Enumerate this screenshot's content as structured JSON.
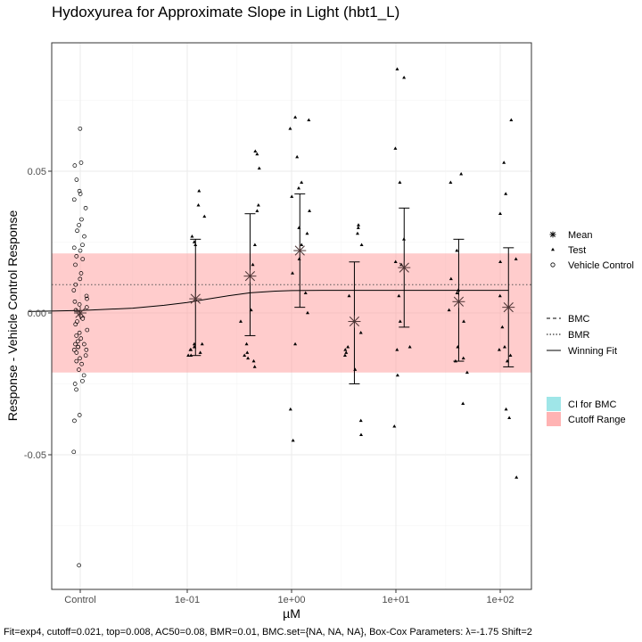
{
  "chart_data": {
    "type": "scatter",
    "title": "Hydoxyurea for Approximate Slope in Light (hbt1_L)",
    "xlabel": "µM",
    "ylabel": "Response - Vehicle Control Response",
    "x_scale": "log10",
    "x_ticks": [
      "Control",
      "1e-01",
      "1e+00",
      "1e+01",
      "1e+02"
    ],
    "y_ticks": [
      "-0.05",
      "0.00",
      "0.05"
    ],
    "ylim": [
      -0.097,
      0.095
    ],
    "grid": true,
    "legend_position": "right",
    "cutoff_range": [
      -0.021,
      0.021
    ],
    "bmr": 0.01,
    "concentrations": [
      0.12,
      0.4,
      1.2,
      4,
      12,
      40,
      120
    ],
    "means": [
      0.005,
      0.013,
      0.022,
      -0.003,
      0.016,
      0.004,
      0.002
    ],
    "error_bars": [
      {
        "low": -0.015,
        "high": 0.026
      },
      {
        "low": -0.008,
        "high": 0.035
      },
      {
        "low": 0.002,
        "high": 0.042
      },
      {
        "low": -0.025,
        "high": 0.018
      },
      {
        "low": -0.005,
        "high": 0.037
      },
      {
        "low": -0.017,
        "high": 0.026
      },
      {
        "low": -0.019,
        "high": 0.023
      }
    ],
    "winning_fit": {
      "model": "exp4",
      "top": 0.008,
      "ac50": 0.08,
      "baseline": 0.0005,
      "x": [
        0.003,
        0.01,
        0.03,
        0.06,
        0.1,
        0.15,
        0.25,
        0.4,
        0.7,
        1,
        2,
        5,
        10,
        30,
        120
      ],
      "y": [
        0.0005,
        0.0009,
        0.0017,
        0.0027,
        0.0037,
        0.0048,
        0.0061,
        0.0071,
        0.0077,
        0.0079,
        0.008,
        0.008,
        0.008,
        0.008,
        0.008
      ]
    },
    "test_points": [
      {
        "x": 0.12,
        "y": [
          0.043,
          0.038,
          0.034,
          0.027,
          0.025,
          0.024,
          -0.011,
          -0.011,
          -0.012,
          -0.012,
          -0.013,
          -0.013,
          -0.014,
          -0.015,
          -0.015
        ]
      },
      {
        "x": 0.4,
        "y": [
          0.057,
          0.056,
          0.051,
          0.038,
          0.036,
          0.024,
          0.017,
          0.001,
          -0.003,
          -0.011,
          -0.014,
          -0.015,
          -0.016,
          -0.017,
          -0.019
        ]
      },
      {
        "x": 1.2,
        "y": [
          0.069,
          0.068,
          0.065,
          0.055,
          0.046,
          0.044,
          0.041,
          0.036,
          0.03,
          0.028,
          0.024,
          0.019,
          0.014,
          0.007,
          0.0,
          -0.011,
          -0.034,
          -0.045
        ]
      },
      {
        "x": 4,
        "y": [
          0.031,
          0.03,
          0.028,
          0.024,
          0.006,
          -0.007,
          -0.012,
          -0.013,
          -0.014,
          -0.015,
          -0.02,
          -0.038,
          -0.043
        ]
      },
      {
        "x": 12,
        "y": [
          0.086,
          0.083,
          0.058,
          0.046,
          0.026,
          0.018,
          0.017,
          0.006,
          -0.003,
          -0.012,
          -0.013,
          -0.022,
          -0.04
        ]
      },
      {
        "x": 40,
        "y": [
          0.049,
          0.046,
          0.022,
          0.012,
          0.008,
          0.007,
          0.001,
          -0.003,
          -0.012,
          -0.016,
          -0.017,
          -0.021,
          -0.032
        ]
      },
      {
        "x": 120,
        "y": [
          0.068,
          0.053,
          0.042,
          0.035,
          0.019,
          0.018,
          0.006,
          -0.005,
          -0.012,
          -0.013,
          -0.015,
          -0.017,
          -0.034,
          -0.037,
          -0.058
        ]
      }
    ],
    "vehicle_control_points": [
      0.065,
      0.053,
      0.052,
      0.047,
      0.043,
      0.042,
      0.04,
      0.037,
      0.033,
      0.031,
      0.029,
      0.027,
      0.024,
      0.023,
      0.022,
      0.02,
      0.019,
      0.017,
      0.014,
      0.012,
      0.01,
      0.008,
      0.006,
      0.005,
      0.004,
      0.003,
      0.002,
      0.001,
      0.0,
      -0.001,
      -0.002,
      -0.003,
      -0.004,
      -0.006,
      -0.007,
      -0.008,
      -0.009,
      -0.01,
      -0.011,
      -0.011,
      -0.012,
      -0.012,
      -0.013,
      -0.013,
      -0.014,
      -0.015,
      -0.016,
      -0.017,
      -0.018,
      -0.02,
      -0.022,
      -0.024,
      -0.025,
      -0.027,
      -0.036,
      -0.038,
      -0.049,
      -0.089
    ],
    "legend_shape": [
      "Mean",
      "Test",
      "Vehicle Control"
    ],
    "legend_lines": [
      "BMC",
      "BMR",
      "Winning Fit"
    ],
    "legend_fill": [
      "CI for BMC",
      "Cutoff Range"
    ],
    "caption": "Fit=exp4, cutoff=0.021, top=0.008, AC50=0.08, BMR=0.01, BMC.set={NA, NA, NA}, Box-Cox Parameters: λ=-1.75 Shift=2"
  },
  "colors": {
    "cutoff_fill": "#ff9999",
    "ci_fill": "#7fdde0",
    "point": "#000000",
    "fit_line": "#000000",
    "mean_marker": "#4d3535",
    "panel_border": "#333333",
    "grid_major": "#ebebeb",
    "grid_minor": "#f4f4f4"
  }
}
